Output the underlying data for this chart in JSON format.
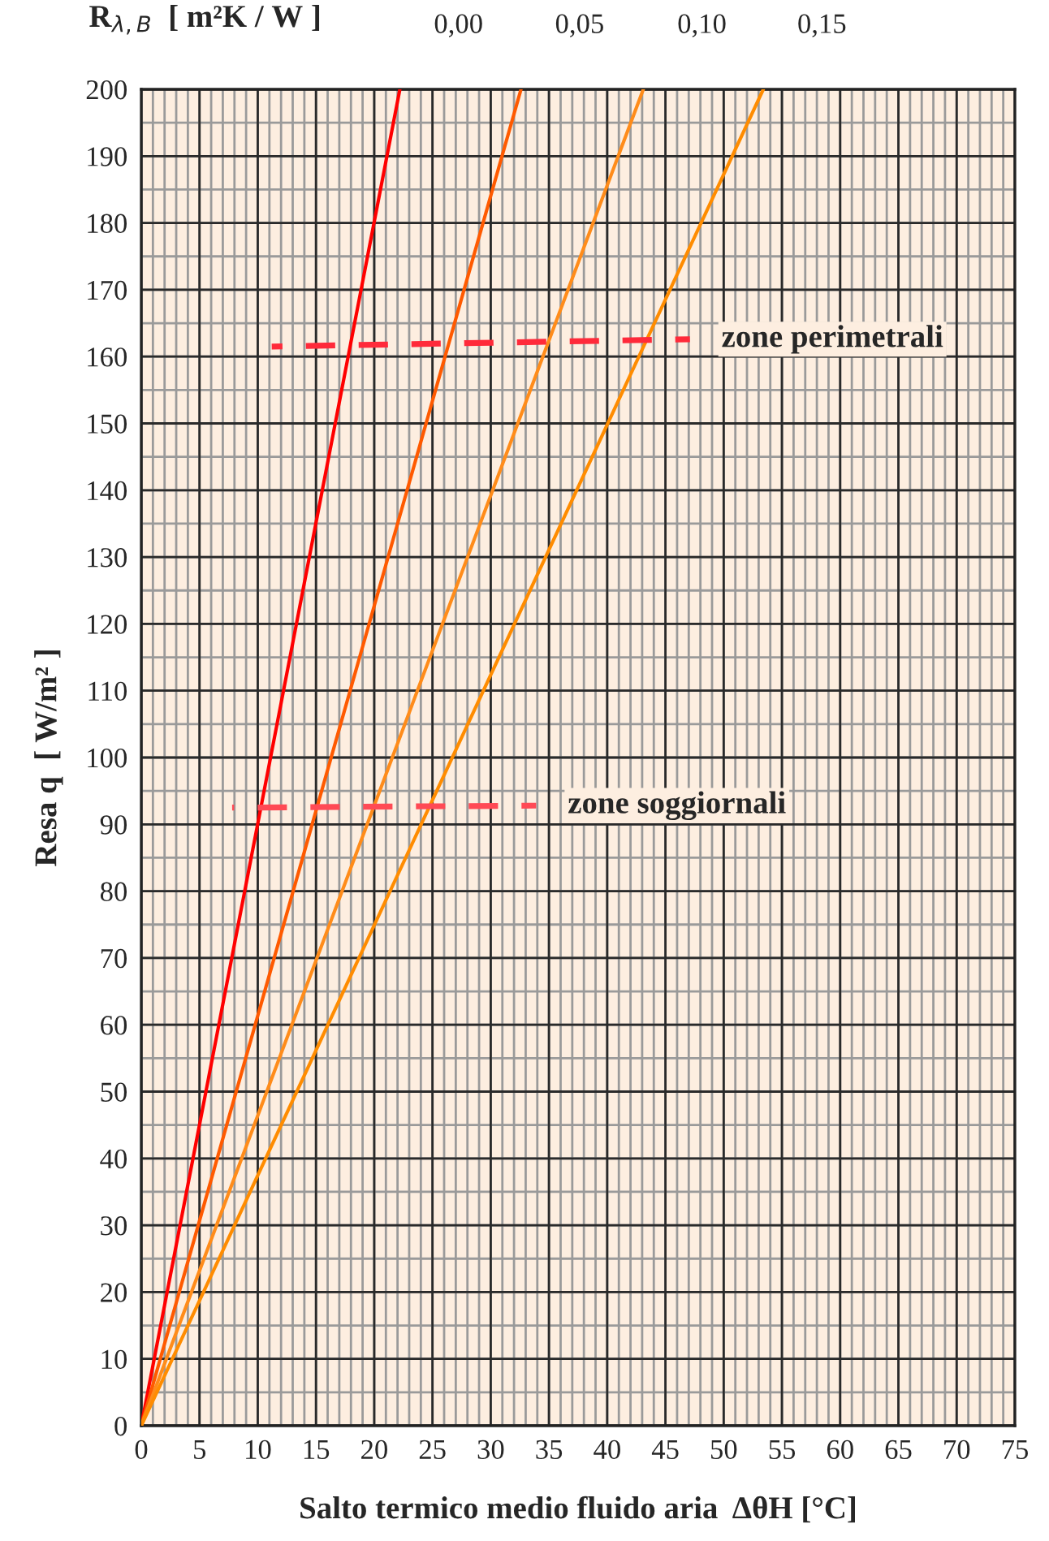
{
  "chart_data": {
    "type": "line",
    "xlabel": "Salto termico medio fluido aria  ΔθH [°C]",
    "ylabel": "Resa q  [ W/m² ]",
    "xlim": [
      0,
      75
    ],
    "xticks": [
      0,
      5,
      10,
      15,
      20,
      25,
      30,
      35,
      40,
      45,
      50,
      55,
      60,
      65,
      70,
      75
    ],
    "ylim": [
      0,
      200
    ],
    "yticks": [
      0,
      10,
      20,
      30,
      40,
      50,
      60,
      70,
      80,
      90,
      100,
      110,
      120,
      130,
      140,
      150,
      160,
      170,
      180,
      190,
      200
    ],
    "series": [
      {
        "name": "0,00",
        "color": "#ff0000",
        "x": [
          0,
          22.2
        ],
        "values": [
          0,
          200
        ]
      },
      {
        "name": "0,05",
        "color": "#ff5a00",
        "x": [
          0,
          32.6
        ],
        "values": [
          0,
          200
        ]
      },
      {
        "name": "0,10",
        "color": "#ff8c1a",
        "x": [
          0,
          43.1
        ],
        "values": [
          0,
          200
        ]
      },
      {
        "name": "0,15",
        "color": "#ff8c00",
        "x": [
          0,
          53.4
        ],
        "values": [
          0,
          200
        ]
      },
      {
        "name": "zone perimetrali",
        "color": "#ff2a3a",
        "line_style": "dashed",
        "x": [
          11.2,
          47.1
        ],
        "values": [
          161.5,
          162.6
        ]
      },
      {
        "name": "zone soggiornali",
        "color": "#ff4a55",
        "line_style": "dashed",
        "x": [
          7.8,
          33.9
        ],
        "values": [
          92.5,
          92.8
        ]
      }
    ],
    "annotations": [
      "R$_{λ,B}$  [ m²K / W ]"
    ],
    "grid": true
  }
}
